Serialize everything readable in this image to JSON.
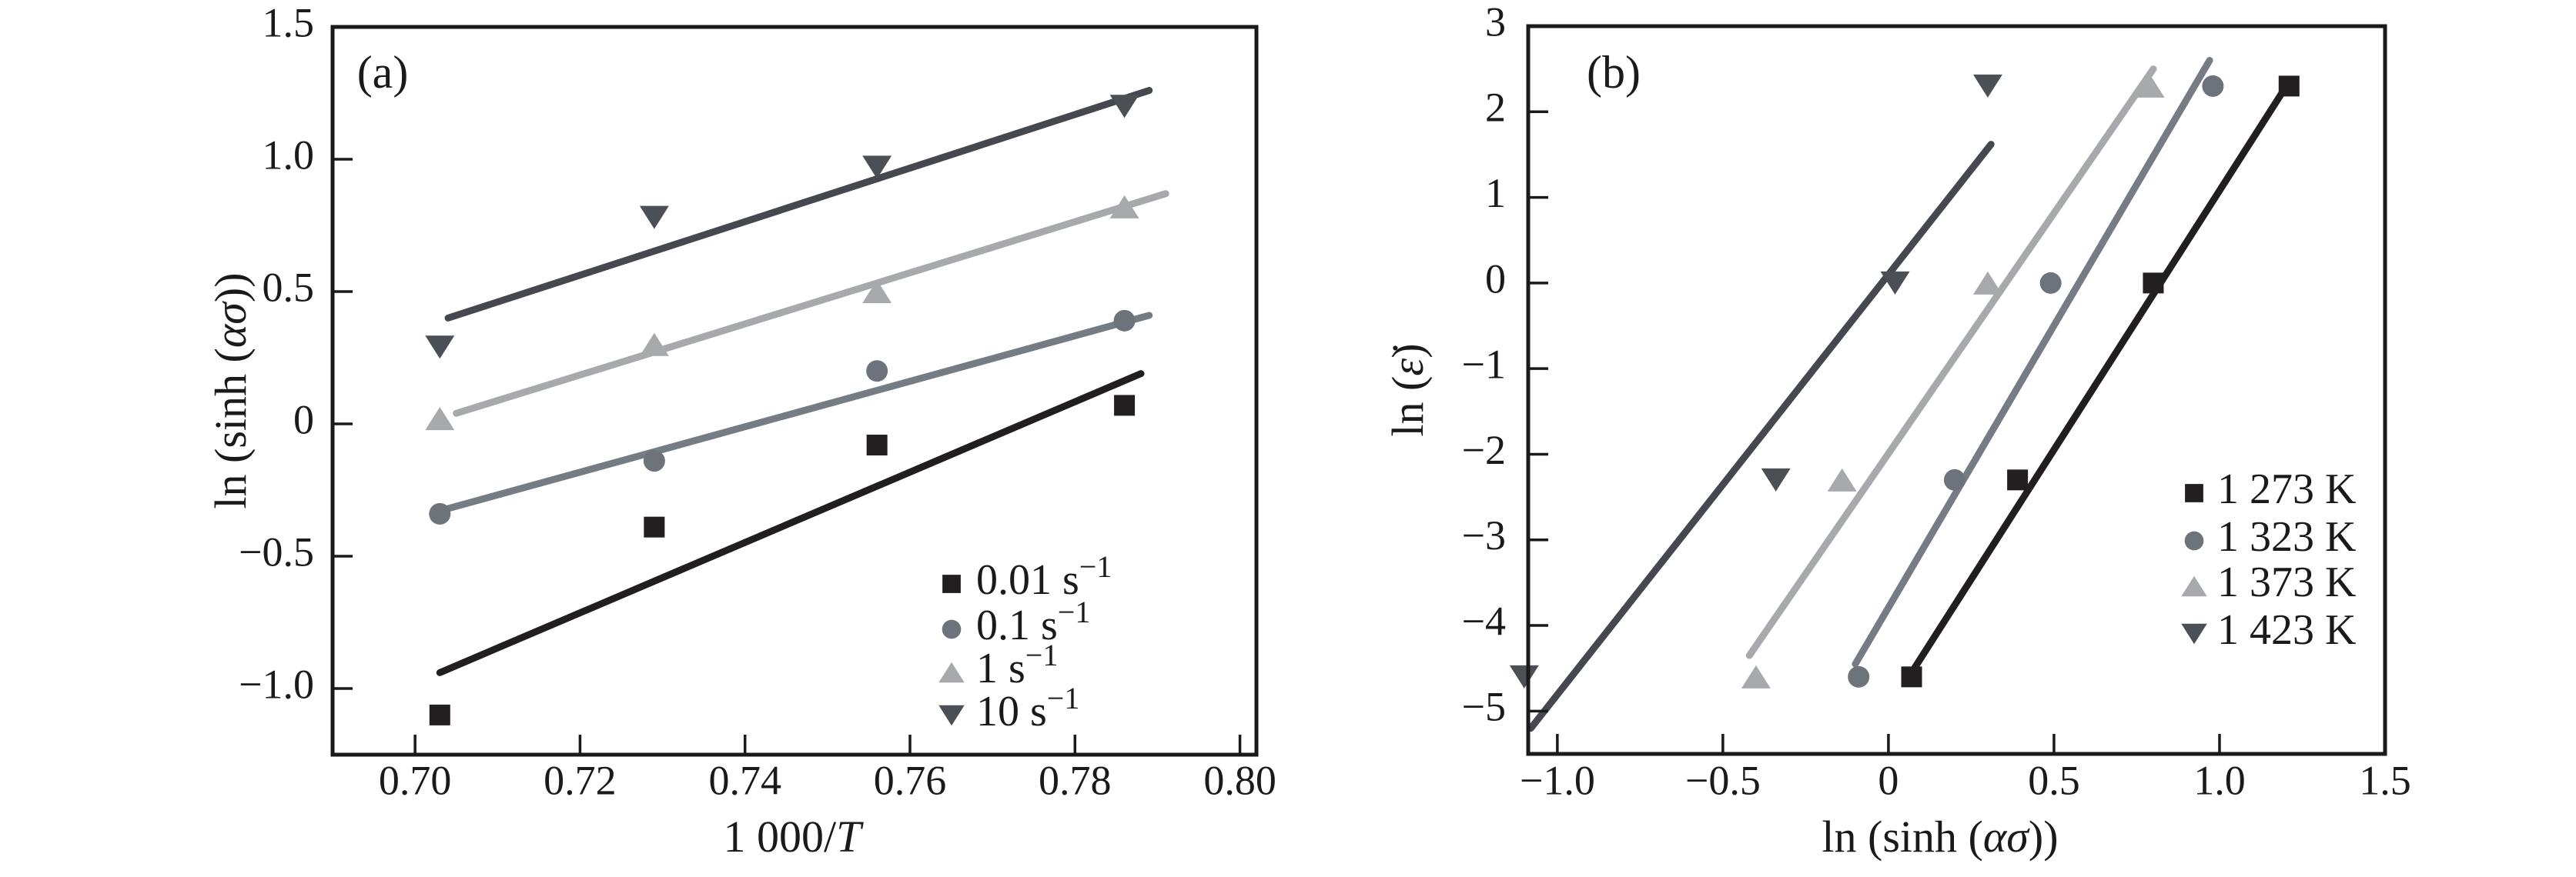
{
  "figure": {
    "background": "#ffffff",
    "axis_color": "#1a1a1a"
  },
  "chart_data": [
    {
      "id": "a",
      "type": "scatter",
      "panel_label": "(a)",
      "xlabel_parts": [
        {
          "t": "1 000/"
        },
        {
          "t": "T",
          "i": true
        }
      ],
      "ylabel_parts": [
        {
          "t": "ln (sinh ("
        },
        {
          "t": "ασ",
          "i": true
        },
        {
          "t": "))"
        }
      ],
      "xlim": [
        0.69,
        0.802
      ],
      "ylim": [
        -1.25,
        1.5
      ],
      "xticks": {
        "values": [
          0.7,
          0.72,
          0.74,
          0.76,
          0.78,
          0.8
        ],
        "labels": [
          "0.70",
          "0.72",
          "0.74",
          "0.76",
          "0.78",
          "0.80"
        ]
      },
      "yticks": {
        "values": [
          1.5,
          1.0,
          0.5,
          0,
          -0.5,
          -1.0
        ],
        "labels": [
          "1.5",
          "1.0",
          "0.5",
          "0",
          "−0.5",
          "−1.0"
        ]
      },
      "grid": false,
      "legend_position": "lower-right-inside",
      "series": [
        {
          "name": "0.01 s⁻¹",
          "legend": {
            "text": "0.01 s",
            "sup": "−1"
          },
          "marker": "square",
          "color": "#231f20",
          "line_color": "#221e1f",
          "x": [
            0.703,
            0.729,
            0.756,
            0.786
          ],
          "y": [
            -1.1,
            -0.39,
            -0.08,
            0.07
          ],
          "fit": [
            0.703,
            -0.94,
            0.788,
            0.19
          ]
        },
        {
          "name": "0.1 s⁻¹",
          "legend": {
            "text": "0.1 s",
            "sup": "−1"
          },
          "marker": "circle",
          "color": "#6d737b",
          "line_color": "#767c84",
          "x": [
            0.703,
            0.729,
            0.756,
            0.786
          ],
          "y": [
            -0.34,
            -0.14,
            0.2,
            0.39
          ],
          "fit": [
            0.704,
            -0.32,
            0.789,
            0.41
          ]
        },
        {
          "name": "1 s⁻¹",
          "legend": {
            "text": "1 s",
            "sup": "−1"
          },
          "marker": "triangle-up",
          "color": "#a7a9ac",
          "line_color": "#a7a9ac",
          "x": [
            0.703,
            0.729,
            0.756,
            0.786
          ],
          "y": [
            0.02,
            0.3,
            0.5,
            0.82
          ],
          "fit": [
            0.705,
            0.04,
            0.791,
            0.87
          ]
        },
        {
          "name": "10 s⁻¹",
          "legend": {
            "text": "10 s",
            "sup": "−1"
          },
          "marker": "triangle-down",
          "color": "#4b4f56",
          "line_color": "#45484e",
          "x": [
            0.703,
            0.729,
            0.756,
            0.786
          ],
          "y": [
            0.29,
            0.78,
            0.97,
            1.2
          ],
          "fit": [
            0.704,
            0.4,
            0.789,
            1.26
          ]
        }
      ]
    },
    {
      "id": "b",
      "type": "scatter",
      "panel_label": "(b)",
      "xlabel_parts": [
        {
          "t": "ln (sinh ("
        },
        {
          "t": "ασ",
          "i": true
        },
        {
          "t": "))"
        }
      ],
      "ylabel_parts": [
        {
          "t": "ln ("
        },
        {
          "t": "ε̇",
          "i": true
        },
        {
          "t": ")"
        }
      ],
      "xlim": [
        -1.088,
        1.5
      ],
      "ylim": [
        -5.5,
        3
      ],
      "xticks": {
        "values": [
          -1.0,
          -0.5,
          0,
          0.5,
          1.0,
          1.5
        ],
        "labels": [
          "−1.0",
          "−0.5",
          "0",
          "0.5",
          "1.0",
          "1.5"
        ]
      },
      "yticks": {
        "values": [
          3,
          2,
          1,
          0,
          -1,
          -2,
          -3,
          -4,
          -5
        ],
        "labels": [
          "3",
          "2",
          "1",
          "0",
          "−1",
          "−2",
          "−3",
          "−4",
          "−5"
        ]
      },
      "grid": false,
      "legend_position": "middle-right-inside",
      "series": [
        {
          "name": "1 273 K",
          "legend": {
            "text": "1 273 K"
          },
          "marker": "square",
          "color": "#231f20",
          "line_color": "#221e1f",
          "x": [
            0.07,
            0.39,
            0.8,
            1.21
          ],
          "y": [
            -4.6,
            -2.3,
            0,
            2.3
          ],
          "fit": [
            0.07,
            -4.55,
            1.21,
            2.35
          ]
        },
        {
          "name": "1 323 K",
          "legend": {
            "text": "1 323 K"
          },
          "marker": "circle",
          "color": "#6d737b",
          "line_color": "#767c84",
          "x": [
            -0.09,
            0.2,
            0.49,
            0.98
          ],
          "y": [
            -4.6,
            -2.3,
            0,
            2.3
          ],
          "fit": [
            -0.1,
            -4.45,
            0.97,
            2.6
          ]
        },
        {
          "name": "1 373 K",
          "legend": {
            "text": "1 373 K"
          },
          "marker": "triangle-up",
          "color": "#a7a9ac",
          "line_color": "#a7a9ac",
          "x": [
            -0.4,
            -0.14,
            0.3,
            0.79
          ],
          "y": [
            -4.6,
            -2.3,
            0,
            2.3
          ],
          "fit": [
            -0.42,
            -4.35,
            0.8,
            2.5
          ]
        },
        {
          "name": "1 423 K",
          "legend": {
            "text": "1 423 K"
          },
          "marker": "triangle-down",
          "color": "#4b4f56",
          "line_color": "#45484e",
          "x": [
            -1.1,
            -0.34,
            0.02,
            0.3
          ],
          "y": [
            -4.6,
            -2.3,
            0,
            2.3
          ],
          "fit": [
            -1.08,
            -5.2,
            0.31,
            1.62
          ]
        }
      ]
    }
  ]
}
